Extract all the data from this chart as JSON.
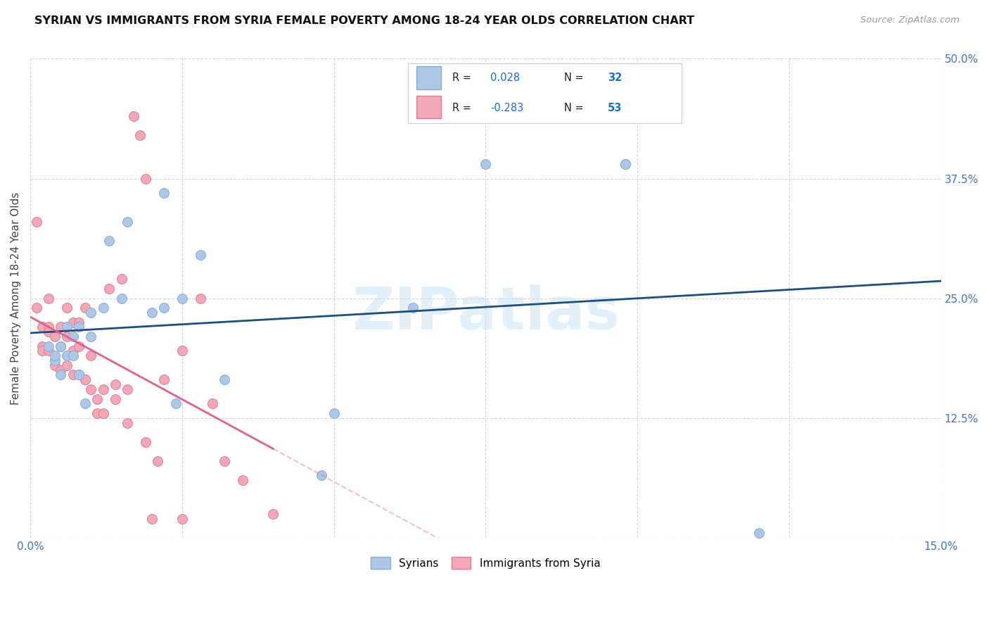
{
  "title": "SYRIAN VS IMMIGRANTS FROM SYRIA FEMALE POVERTY AMONG 18-24 YEAR OLDS CORRELATION CHART",
  "source": "Source: ZipAtlas.com",
  "ylabel": "Female Poverty Among 18-24 Year Olds",
  "xlim": [
    0.0,
    0.15
  ],
  "ylim": [
    0.0,
    0.5
  ],
  "x_ticks": [
    0.0,
    0.025,
    0.05,
    0.075,
    0.1,
    0.125,
    0.15
  ],
  "x_tick_labels": [
    "0.0%",
    "",
    "",
    "",
    "",
    "",
    "15.0%"
  ],
  "y_ticks": [
    0.0,
    0.125,
    0.25,
    0.375,
    0.5
  ],
  "y_tick_labels": [
    "",
    "12.5%",
    "25.0%",
    "37.5%",
    "50.0%"
  ],
  "grid_color": "#cccccc",
  "bg": "#ffffff",
  "watermark": "ZIPatlas",
  "color_syrians": "#aec6e8",
  "color_syrians_edge": "#7fafd4",
  "color_immigrants": "#f4a7b9",
  "color_immigrants_edge": "#d48090",
  "color_syrians_line": "#1f4e79",
  "color_immigrants_line": "#e06090",
  "color_ticks": "#4472c4",
  "syrians_x": [
    0.003,
    0.004,
    0.004,
    0.005,
    0.006,
    0.006,
    0.007,
    0.007,
    0.008,
    0.009,
    0.01,
    0.01,
    0.012,
    0.013,
    0.015,
    0.016,
    0.02,
    0.022,
    0.022,
    0.024,
    0.025,
    0.028,
    0.032,
    0.048,
    0.05,
    0.063,
    0.075,
    0.098,
    0.12,
    0.005,
    0.008,
    0.098
  ],
  "syrians_y": [
    0.2,
    0.185,
    0.19,
    0.2,
    0.19,
    0.22,
    0.21,
    0.19,
    0.22,
    0.14,
    0.21,
    0.235,
    0.24,
    0.31,
    0.25,
    0.33,
    0.235,
    0.24,
    0.36,
    0.14,
    0.25,
    0.295,
    0.165,
    0.065,
    0.13,
    0.24,
    0.39,
    0.39,
    0.005,
    0.17,
    0.17,
    0.39
  ],
  "immigrants_x": [
    0.001,
    0.001,
    0.002,
    0.002,
    0.002,
    0.003,
    0.003,
    0.003,
    0.003,
    0.004,
    0.004,
    0.004,
    0.005,
    0.005,
    0.005,
    0.006,
    0.006,
    0.006,
    0.007,
    0.007,
    0.007,
    0.008,
    0.008,
    0.008,
    0.009,
    0.009,
    0.009,
    0.01,
    0.01,
    0.011,
    0.011,
    0.012,
    0.012,
    0.013,
    0.014,
    0.014,
    0.015,
    0.016,
    0.016,
    0.017,
    0.018,
    0.019,
    0.019,
    0.02,
    0.021,
    0.022,
    0.025,
    0.025,
    0.028,
    0.03,
    0.032,
    0.035,
    0.04
  ],
  "immigrants_y": [
    0.24,
    0.33,
    0.2,
    0.195,
    0.22,
    0.22,
    0.215,
    0.25,
    0.195,
    0.21,
    0.185,
    0.18,
    0.2,
    0.22,
    0.175,
    0.21,
    0.18,
    0.24,
    0.225,
    0.195,
    0.17,
    0.2,
    0.225,
    0.17,
    0.165,
    0.24,
    0.165,
    0.155,
    0.19,
    0.145,
    0.13,
    0.155,
    0.13,
    0.26,
    0.145,
    0.16,
    0.27,
    0.155,
    0.12,
    0.44,
    0.42,
    0.375,
    0.1,
    0.02,
    0.08,
    0.165,
    0.02,
    0.195,
    0.25,
    0.14,
    0.08,
    0.06,
    0.025
  ]
}
